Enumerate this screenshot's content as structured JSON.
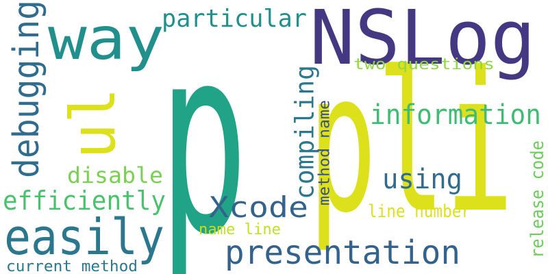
{
  "words": [
    {
      "text": "pli",
      "color": "#DDE11C",
      "orientation": "horizontal"
    },
    {
      "text": "p",
      "color": "#20A386",
      "orientation": "horizontal"
    },
    {
      "text": "NSLog",
      "color": "#453882",
      "orientation": "horizontal"
    },
    {
      "text": "way",
      "color": "#218F8C",
      "orientation": "horizontal"
    },
    {
      "text": "ul",
      "color": "#DDE11C",
      "orientation": "vertical"
    },
    {
      "text": "easily",
      "color": "#2A778E",
      "orientation": "horizontal"
    },
    {
      "text": "presentation",
      "color": "#33638D",
      "orientation": "horizontal"
    },
    {
      "text": "information",
      "color": "#3FBC73",
      "orientation": "horizontal"
    },
    {
      "text": "Xcode",
      "color": "#33638D",
      "orientation": "horizontal"
    },
    {
      "text": "debugging",
      "color": "#2F6C8E",
      "orientation": "vertical"
    },
    {
      "text": "efficiently",
      "color": "#4AC16D",
      "orientation": "horizontal"
    },
    {
      "text": "particular",
      "color": "#218F8C",
      "orientation": "horizontal"
    },
    {
      "text": "using",
      "color": "#2F6C8E",
      "orientation": "horizontal"
    },
    {
      "text": "compiling",
      "color": "#2A778E",
      "orientation": "vertical"
    },
    {
      "text": "disable",
      "color": "#7AD151",
      "orientation": "horizontal"
    },
    {
      "text": "two questions",
      "color": "#8FD744",
      "orientation": "horizontal"
    },
    {
      "text": "method name",
      "color": "#3B518A",
      "orientation": "vertical"
    },
    {
      "text": "release code",
      "color": "#6CCD5A",
      "orientation": "vertical"
    },
    {
      "text": "line number",
      "color": "#DDE11C",
      "orientation": "horizontal"
    },
    {
      "text": "name line",
      "color": "#C2DF23",
      "orientation": "horizontal"
    },
    {
      "text": "current method",
      "color": "#2A788E",
      "orientation": "horizontal"
    }
  ]
}
